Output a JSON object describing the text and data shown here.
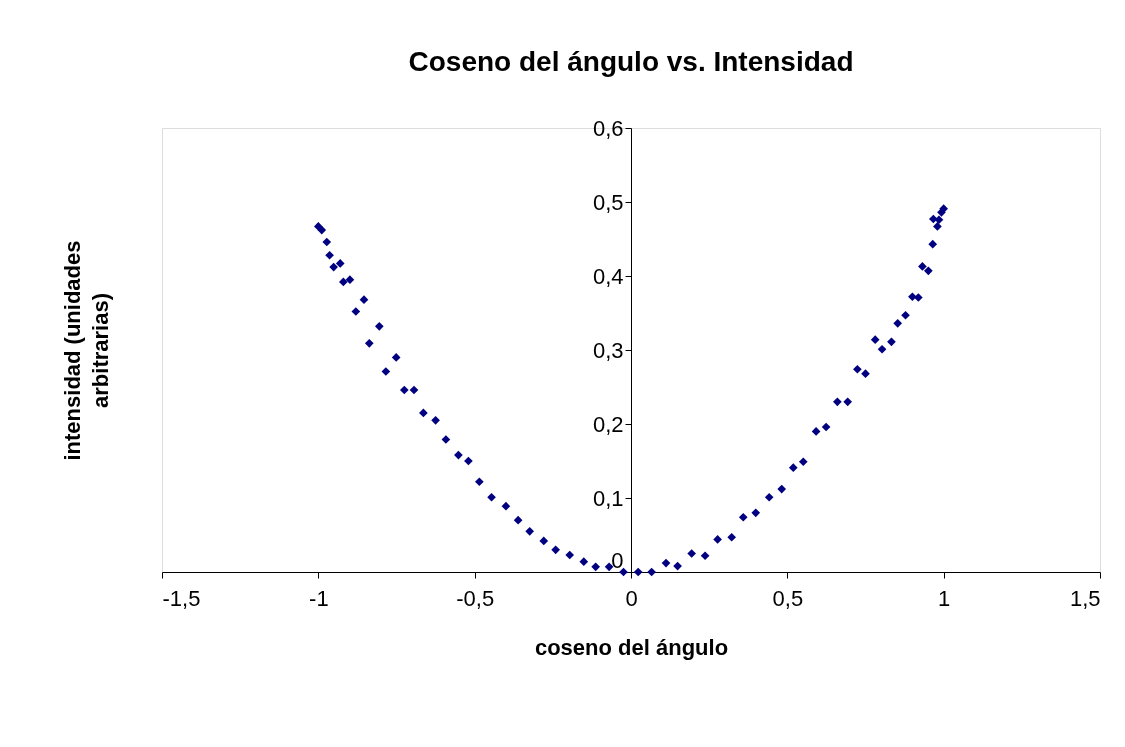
{
  "chart_data": {
    "type": "scatter",
    "title": "Coseno del ángulo vs. Intensidad",
    "xlabel": "coseno del ángulo",
    "ylabel": "intensidad (unidades arbitrarias)",
    "marker": "diamond",
    "grid": false,
    "xlim": [
      -1.5,
      1.5
    ],
    "ylim": [
      0,
      0.6
    ],
    "xticks": [
      {
        "value": -1.5,
        "label": "-1,5"
      },
      -1,
      {
        "value": -0.5,
        "label": "-0,5"
      },
      0,
      {
        "value": 0.5,
        "label": "0,5"
      },
      1,
      {
        "value": 1.5,
        "label": "1,5"
      }
    ],
    "yticks": [
      0,
      {
        "value": 0.1,
        "label": "0,1"
      },
      {
        "value": 0.2,
        "label": "0,2"
      },
      {
        "value": 0.3,
        "label": "0,3"
      },
      {
        "value": 0.4,
        "label": "0,4"
      },
      {
        "value": 0.5,
        "label": "0,5"
      },
      {
        "value": 0.6,
        "label": "0,6"
      }
    ],
    "series": [
      {
        "color": "#000080",
        "x": [
          -1.0,
          -0.989,
          -0.973,
          -0.964,
          -0.951,
          -0.93,
          -0.92,
          -0.899,
          -0.88,
          -0.854,
          -0.837,
          -0.805,
          -0.784,
          -0.751,
          -0.725,
          -0.694,
          -0.664,
          -0.625,
          -0.592,
          -0.552,
          -0.52,
          -0.485,
          -0.446,
          -0.4,
          -0.361,
          -0.324,
          -0.279,
          -0.241,
          -0.196,
          -0.151,
          -0.113,
          -0.07,
          -0.024,
          0.023,
          0.066,
          0.112,
          0.149,
          0.194,
          0.237,
          0.277,
          0.322,
          0.359,
          0.399,
          0.442,
          0.482,
          0.519,
          0.551,
          0.592,
          0.624,
          0.66,
          0.693,
          0.724,
          0.75,
          0.781,
          0.803,
          0.833,
          0.853,
          0.878,
          0.9,
          0.919,
          0.932,
          0.951,
          0.965,
          0.967,
          0.98,
          0.985,
          0.993,
          1.0
        ],
        "values": [
          0.467,
          0.462,
          0.446,
          0.428,
          0.412,
          0.417,
          0.392,
          0.395,
          0.352,
          0.368,
          0.309,
          0.332,
          0.271,
          0.29,
          0.246,
          0.246,
          0.215,
          0.205,
          0.179,
          0.158,
          0.15,
          0.122,
          0.101,
          0.089,
          0.07,
          0.055,
          0.042,
          0.03,
          0.023,
          0.014,
          0.007,
          0.007,
          0.0,
          0.0,
          0.0,
          0.012,
          0.008,
          0.025,
          0.022,
          0.044,
          0.047,
          0.074,
          0.08,
          0.101,
          0.112,
          0.141,
          0.149,
          0.19,
          0.196,
          0.23,
          0.23,
          0.274,
          0.268,
          0.314,
          0.301,
          0.311,
          0.336,
          0.347,
          0.372,
          0.371,
          0.413,
          0.407,
          0.443,
          0.477,
          0.467,
          0.476,
          0.486,
          0.491
        ]
      }
    ]
  }
}
